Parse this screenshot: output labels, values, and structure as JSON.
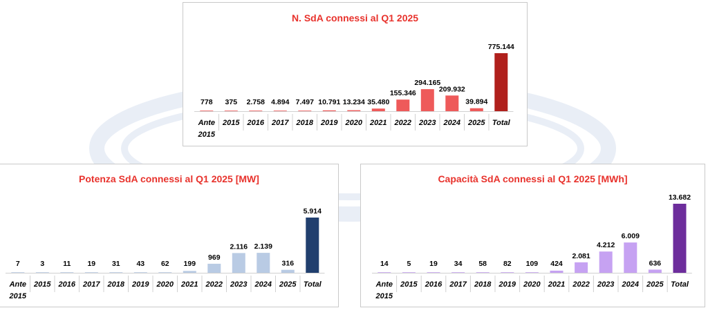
{
  "colors": {
    "title": "#e8322c",
    "text": "#000000",
    "gridline": "#d0d0d0",
    "watermark": "#e9eef6"
  },
  "chart_data": [
    {
      "type": "bar",
      "title": "N. SdA connessi al Q1 2025",
      "categories": [
        "Ante 2015",
        "2015",
        "2016",
        "2017",
        "2018",
        "2019",
        "2020",
        "2021",
        "2022",
        "2023",
        "2024",
        "2025",
        "Total"
      ],
      "category_lines": [
        [
          "Ante",
          "2015"
        ],
        [
          "2015"
        ],
        [
          "2016"
        ],
        [
          "2017"
        ],
        [
          "2018"
        ],
        [
          "2019"
        ],
        [
          "2020"
        ],
        [
          "2021"
        ],
        [
          "2022"
        ],
        [
          "2023"
        ],
        [
          "2024"
        ],
        [
          "2025"
        ],
        [
          "Total"
        ]
      ],
      "values": [
        778,
        375,
        2758,
        4894,
        7497,
        10791,
        13234,
        35480,
        155346,
        294165,
        209932,
        39894,
        775144
      ],
      "labels": [
        "778",
        "375",
        "2.758",
        "4.894",
        "7.497",
        "10.791",
        "13.234",
        "35.480",
        "155.346",
        "294.165",
        "209.932",
        "39.894",
        "775.144"
      ],
      "ylim": [
        0,
        775144
      ],
      "grid": false,
      "bar_color": "#ee5a5a",
      "total_color": "#b0201c"
    },
    {
      "type": "bar",
      "title": "Potenza SdA connessi al Q1 2025 [MW]",
      "categories": [
        "Ante 2015",
        "2015",
        "2016",
        "2017",
        "2018",
        "2019",
        "2020",
        "2021",
        "2022",
        "2023",
        "2024",
        "2025",
        "Total"
      ],
      "category_lines": [
        [
          "Ante",
          "2015"
        ],
        [
          "2015"
        ],
        [
          "2016"
        ],
        [
          "2017"
        ],
        [
          "2018"
        ],
        [
          "2019"
        ],
        [
          "2020"
        ],
        [
          "2021"
        ],
        [
          "2022"
        ],
        [
          "2023"
        ],
        [
          "2024"
        ],
        [
          "2025"
        ],
        [
          "Total"
        ]
      ],
      "values": [
        7,
        3,
        11,
        19,
        31,
        43,
        62,
        199,
        969,
        2116,
        2139,
        316,
        5914
      ],
      "labels": [
        "7",
        "3",
        "11",
        "19",
        "31",
        "43",
        "62",
        "199",
        "969",
        "2.116",
        "2.139",
        "316",
        "5.914"
      ],
      "ylim": [
        0,
        5914
      ],
      "grid": false,
      "bar_color": "#b9cbe4",
      "total_color": "#213f6e"
    },
    {
      "type": "bar",
      "title": "Capacità SdA connessi al Q1 2025 [MWh]",
      "categories": [
        "Ante 2015",
        "2015",
        "2016",
        "2017",
        "2018",
        "2019",
        "2020",
        "2021",
        "2022",
        "2023",
        "2024",
        "2025",
        "Total"
      ],
      "category_lines": [
        [
          "Ante",
          "2015"
        ],
        [
          "2015"
        ],
        [
          "2016"
        ],
        [
          "2017"
        ],
        [
          "2018"
        ],
        [
          "2019"
        ],
        [
          "2020"
        ],
        [
          "2021"
        ],
        [
          "2022"
        ],
        [
          "2023"
        ],
        [
          "2024"
        ],
        [
          "2025"
        ],
        [
          "Total"
        ]
      ],
      "values": [
        14,
        5,
        19,
        34,
        58,
        82,
        109,
        424,
        2081,
        4212,
        6009,
        636,
        13682
      ],
      "labels": [
        "14",
        "5",
        "19",
        "34",
        "58",
        "82",
        "109",
        "424",
        "2.081",
        "4.212",
        "6.009",
        "636",
        "13.682"
      ],
      "ylim": [
        0,
        13682
      ],
      "grid": false,
      "bar_color": "#c6a2f2",
      "total_color": "#6d2d9c"
    }
  ]
}
